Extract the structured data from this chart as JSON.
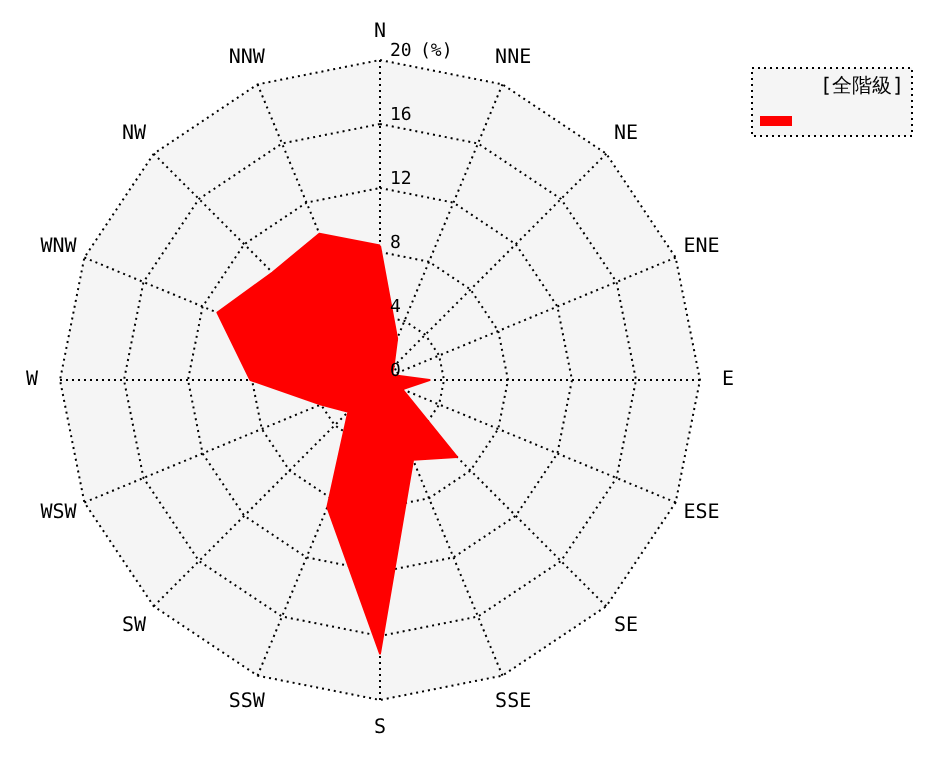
{
  "chart_data": {
    "type": "radar",
    "ylabel": "(%)",
    "categories": [
      "N",
      "NNE",
      "NE",
      "ENE",
      "E",
      "ESE",
      "SE",
      "SSE",
      "S",
      "SSW",
      "SW",
      "WSW",
      "W",
      "WNW",
      "NW",
      "NNW"
    ],
    "series": [
      {
        "name": "[全階級]",
        "color": "#ff0000",
        "values": [
          8.4,
          2.8,
          1.2,
          0.8,
          3.1,
          1.5,
          6.8,
          5.4,
          17.1,
          8.6,
          2.8,
          4.0,
          8.1,
          11.0,
          9.5,
          9.9
        ]
      }
    ],
    "ylim": [
      0,
      20
    ],
    "yticks": [
      0,
      4,
      8,
      12,
      16,
      20
    ],
    "grid": true,
    "legend": "top right"
  }
}
